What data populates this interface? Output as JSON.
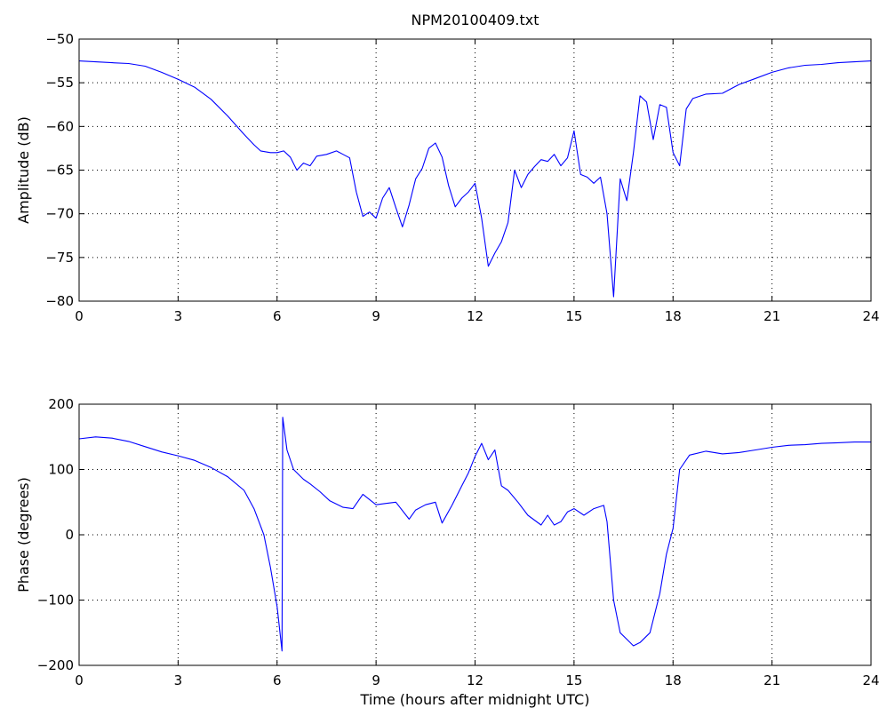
{
  "title": "NPM20100409.txt",
  "chart_data": [
    {
      "type": "line",
      "title": "NPM20100409.txt",
      "xlabel": "",
      "ylabel": "Amplitude (dB)",
      "xlim": [
        0,
        24
      ],
      "ylim": [
        -80,
        -50
      ],
      "xticks": [
        0,
        3,
        6,
        9,
        12,
        15,
        18,
        21,
        24
      ],
      "yticks": [
        -50,
        -55,
        -60,
        -65,
        -70,
        -75,
        -80
      ],
      "grid": true,
      "color": "#0000ff",
      "x": [
        0,
        0.5,
        1,
        1.5,
        2,
        2.5,
        3,
        3.5,
        4,
        4.5,
        5,
        5.3,
        5.5,
        5.8,
        6.0,
        6.2,
        6.4,
        6.6,
        6.8,
        7.0,
        7.2,
        7.5,
        7.8,
        8.0,
        8.2,
        8.4,
        8.6,
        8.8,
        9.0,
        9.2,
        9.4,
        9.6,
        9.8,
        10.0,
        10.2,
        10.4,
        10.6,
        10.8,
        11.0,
        11.2,
        11.4,
        11.6,
        11.8,
        12.0,
        12.2,
        12.4,
        12.6,
        12.8,
        13.0,
        13.2,
        13.4,
        13.6,
        13.8,
        14.0,
        14.2,
        14.4,
        14.6,
        14.8,
        15.0,
        15.2,
        15.4,
        15.6,
        15.8,
        16.0,
        16.2,
        16.4,
        16.6,
        16.8,
        17.0,
        17.2,
        17.4,
        17.6,
        17.8,
        18.0,
        18.2,
        18.4,
        18.6,
        19.0,
        19.5,
        20.0,
        20.5,
        21.0,
        21.5,
        22.0,
        22.5,
        23.0,
        23.5,
        24.0
      ],
      "y": [
        -52.5,
        -52.6,
        -52.7,
        -52.8,
        -53.1,
        -53.8,
        -54.6,
        -55.5,
        -56.9,
        -58.8,
        -60.9,
        -62.1,
        -62.8,
        -63.0,
        -63.0,
        -62.8,
        -63.5,
        -65.0,
        -64.2,
        -64.5,
        -63.4,
        -63.2,
        -62.8,
        -63.2,
        -63.6,
        -67.5,
        -70.3,
        -69.8,
        -70.5,
        -68.2,
        -67.0,
        -69.3,
        -71.5,
        -69.0,
        -66.0,
        -64.8,
        -62.5,
        -61.9,
        -63.5,
        -66.8,
        -69.2,
        -68.2,
        -67.5,
        -66.5,
        -70.5,
        -76.0,
        -74.5,
        -73.2,
        -71.0,
        -65.0,
        -67.0,
        -65.5,
        -64.6,
        -63.8,
        -64.0,
        -63.2,
        -64.5,
        -63.6,
        -60.5,
        -65.5,
        -65.8,
        -66.5,
        -65.8,
        -70.0,
        -79.5,
        -66.0,
        -68.5,
        -63.0,
        -56.5,
        -57.2,
        -61.5,
        -57.5,
        -57.8,
        -63.0,
        -64.5,
        -58.0,
        -56.8,
        -56.3,
        -56.2,
        -55.2,
        -54.5,
        -53.8,
        -53.3,
        -53.0,
        -52.9,
        -52.7,
        -52.6,
        -52.5
      ]
    },
    {
      "type": "line",
      "title": "",
      "xlabel": "Time (hours after midnight UTC)",
      "ylabel": "Phase (degrees)",
      "xlim": [
        0,
        24
      ],
      "ylim": [
        -200,
        200
      ],
      "xticks": [
        0,
        3,
        6,
        9,
        12,
        15,
        18,
        21,
        24
      ],
      "yticks": [
        200,
        100,
        0,
        -100,
        -200
      ],
      "grid": true,
      "color": "#0000ff",
      "x": [
        0,
        0.5,
        1,
        1.5,
        2,
        2.5,
        3,
        3.5,
        4,
        4.5,
        5,
        5.3,
        5.6,
        5.8,
        6.0,
        6.15,
        6.17,
        6.3,
        6.5,
        6.8,
        7.0,
        7.3,
        7.6,
        8.0,
        8.3,
        8.6,
        9.0,
        9.3,
        9.6,
        10.0,
        10.2,
        10.5,
        10.8,
        11.0,
        11.3,
        11.6,
        11.8,
        12.0,
        12.2,
        12.4,
        12.6,
        12.8,
        13.0,
        13.3,
        13.6,
        14.0,
        14.2,
        14.4,
        14.6,
        14.8,
        15.0,
        15.3,
        15.6,
        15.9,
        16.0,
        16.2,
        16.4,
        16.6,
        16.8,
        17.0,
        17.3,
        17.6,
        17.8,
        18.0,
        18.2,
        18.5,
        19.0,
        19.5,
        20.0,
        20.5,
        21.0,
        21.5,
        22.0,
        22.5,
        23.0,
        23.5,
        24.0
      ],
      "y": [
        147,
        150,
        148,
        143,
        135,
        127,
        121,
        114,
        103,
        89,
        68,
        40,
        0,
        -50,
        -110,
        -178,
        180,
        130,
        100,
        85,
        78,
        66,
        52,
        42,
        40,
        62,
        46,
        48,
        50,
        24,
        38,
        46,
        50,
        18,
        45,
        75,
        95,
        120,
        140,
        115,
        130,
        75,
        68,
        50,
        30,
        15,
        30,
        15,
        20,
        35,
        40,
        30,
        40,
        45,
        20,
        -100,
        -150,
        -160,
        -170,
        -165,
        -150,
        -90,
        -30,
        10,
        100,
        122,
        128,
        124,
        126,
        130,
        134,
        137,
        138,
        140,
        141,
        142,
        142
      ]
    }
  ]
}
